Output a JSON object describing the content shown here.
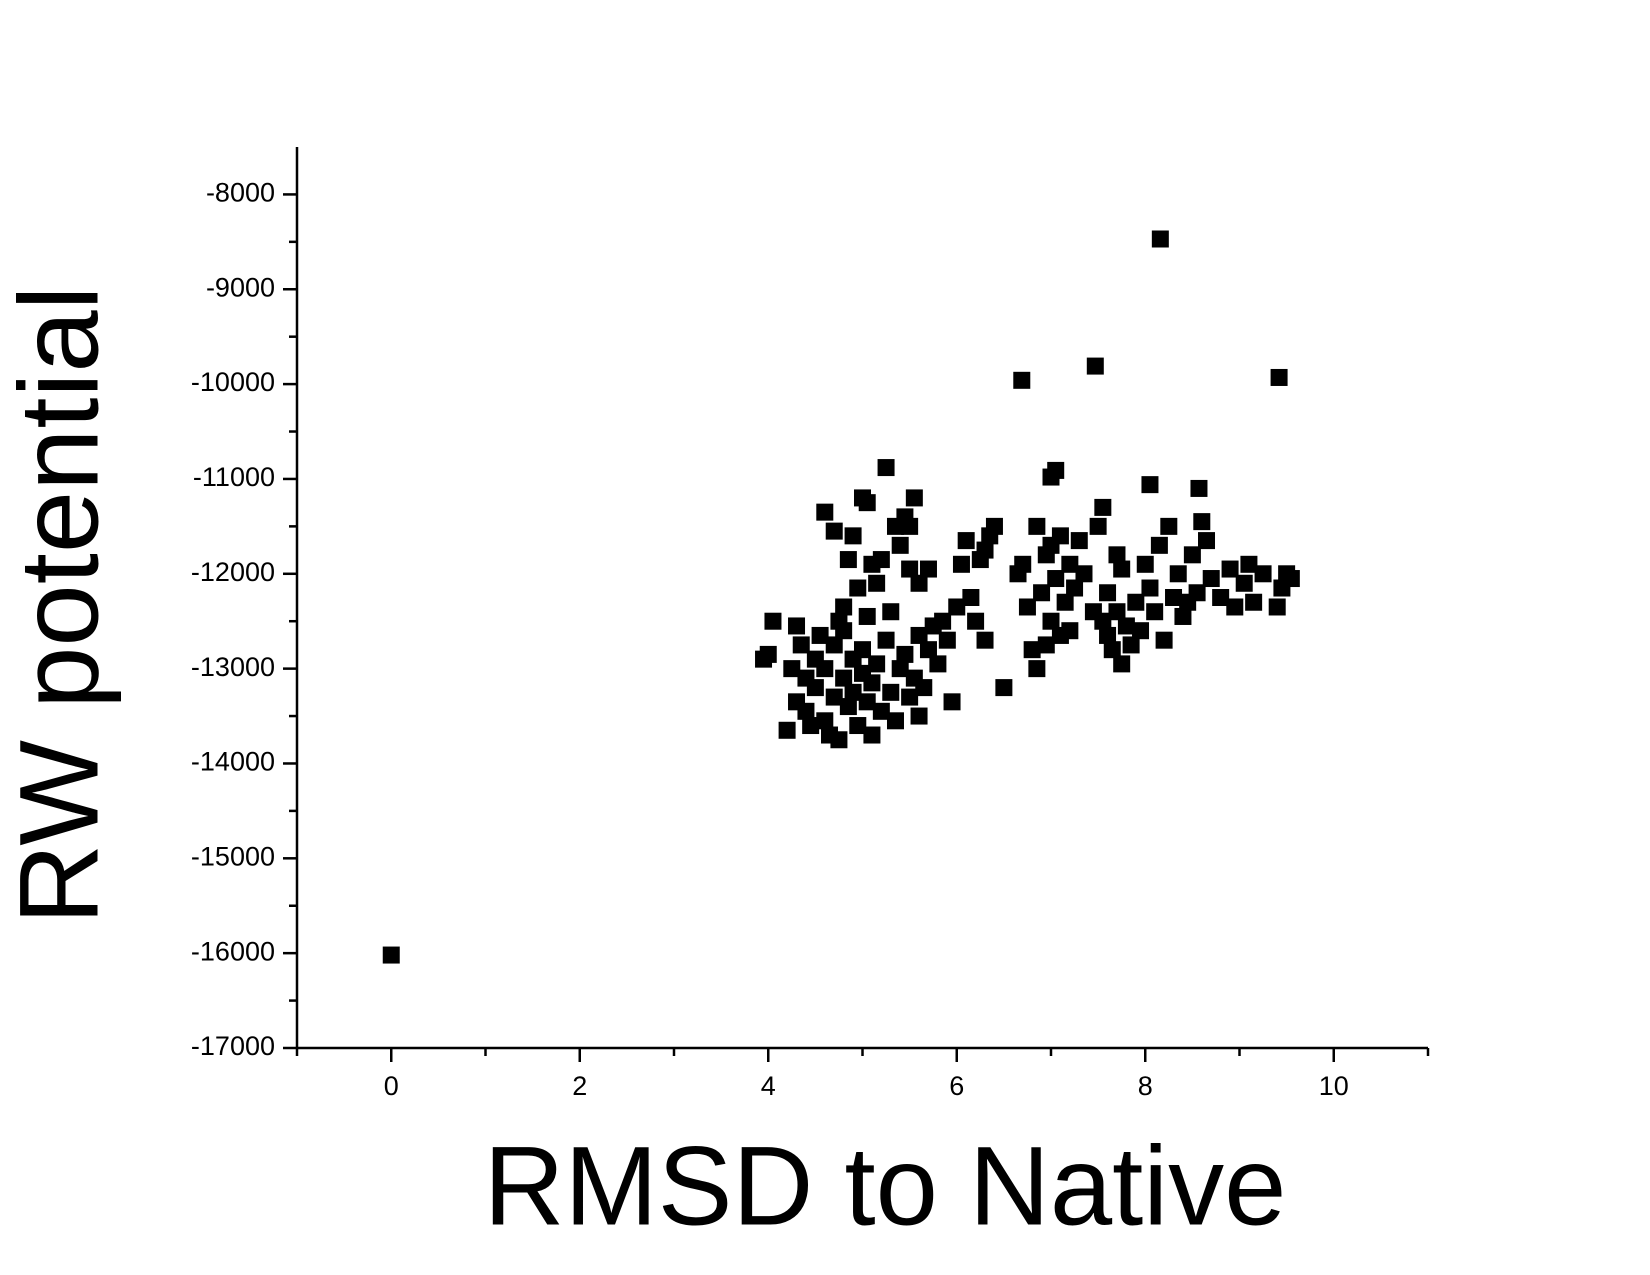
{
  "chart_data": {
    "type": "scatter",
    "x_label": "RMSD to Native",
    "y_label": "RW potential",
    "color": "#000000",
    "marker": "square",
    "xlim": [
      -1,
      11
    ],
    "ylim": [
      -17000,
      -7500
    ],
    "xticks": [
      0,
      2,
      4,
      6,
      8,
      10
    ],
    "yticks": [
      -8000,
      -9000,
      -10000,
      -11000,
      -12000,
      -13000,
      -14000,
      -15000,
      -16000,
      -17000
    ],
    "x_minor_ticks": [
      -1,
      1,
      3,
      5,
      7,
      9,
      11
    ],
    "y_minor_ticks": [
      -8500,
      -9500,
      -10500,
      -11500,
      -12500,
      -13500,
      -14500,
      -15500,
      -16500
    ],
    "x": [
      0,
      8.16,
      7.47,
      6.69,
      9.42,
      5.25,
      7.05,
      8.05,
      8.57,
      7.0,
      4.0,
      3.95,
      4.05,
      4.2,
      4.3,
      4.3,
      4.4,
      4.4,
      4.5,
      4.5,
      4.55,
      4.6,
      4.6,
      4.65,
      4.7,
      4.7,
      4.75,
      4.8,
      4.8,
      4.85,
      4.9,
      4.9,
      4.95,
      5.0,
      5.0,
      5.05,
      5.1,
      5.1,
      5.15,
      5.2,
      5.25,
      5.3,
      5.35,
      5.4,
      5.45,
      5.5,
      5.55,
      5.6,
      4.35,
      4.45,
      5.6,
      5.7,
      5.75,
      5.8,
      5.9,
      5.95,
      5.65,
      4.25,
      4.75,
      5.05,
      4.6,
      4.7,
      4.8,
      4.85,
      4.9,
      5.0,
      5.05,
      5.1,
      5.15,
      5.2,
      5.3,
      5.35,
      5.4,
      5.45,
      5.5,
      5.55,
      5.6,
      5.7,
      5.5,
      4.95,
      6.0,
      6.05,
      6.1,
      6.15,
      6.25,
      6.3,
      6.35,
      6.4,
      6.5,
      6.2,
      6.3,
      5.85,
      6.65,
      6.7,
      6.75,
      6.8,
      6.85,
      6.85,
      6.9,
      6.95,
      7.0,
      7.0,
      7.05,
      7.1,
      7.1,
      7.15,
      7.2,
      7.25,
      7.3,
      7.35,
      7.45,
      7.5,
      7.55,
      6.95,
      7.2,
      7.55,
      7.6,
      7.65,
      7.7,
      7.7,
      7.75,
      7.8,
      7.85,
      7.75,
      7.9,
      7.95,
      7.6,
      8.0,
      8.05,
      8.1,
      8.15,
      8.2,
      8.25,
      8.3,
      8.35,
      8.4,
      8.5,
      8.55,
      8.6,
      8.65,
      8.7,
      8.8,
      8.9,
      8.95,
      9.05,
      9.1,
      9.15,
      9.25,
      9.4,
      9.45,
      9.5,
      9.55,
      8.45
    ],
    "values": [
      -16020,
      -8470,
      -9810,
      -9960,
      -9930,
      -10880,
      -10910,
      -11060,
      -11100,
      -10980,
      -12850,
      -12900,
      -12500,
      -13650,
      -12550,
      -13350,
      -13100,
      -13450,
      -12900,
      -13200,
      -12650,
      -13000,
      -13550,
      -13700,
      -12750,
      -13300,
      -13750,
      -12600,
      -13100,
      -13400,
      -12900,
      -13250,
      -13600,
      -12800,
      -13050,
      -13350,
      -13150,
      -13700,
      -12950,
      -13450,
      -12700,
      -13250,
      -13550,
      -13000,
      -12850,
      -13300,
      -13100,
      -13500,
      -12750,
      -13600,
      -12650,
      -12800,
      -12550,
      -12950,
      -12700,
      -13350,
      -13200,
      -13000,
      -12500,
      -12450,
      -11350,
      -11550,
      -12350,
      -11850,
      -11600,
      -11200,
      -11250,
      -11900,
      -12100,
      -11850,
      -12400,
      -11500,
      -11700,
      -11400,
      -11500,
      -11200,
      -12100,
      -11950,
      -11950,
      -12150,
      -12350,
      -11900,
      -11650,
      -12250,
      -11850,
      -12700,
      -11600,
      -11500,
      -13200,
      -12500,
      -11750,
      -12500,
      -12000,
      -11900,
      -12350,
      -12800,
      -11500,
      -13000,
      -12200,
      -11800,
      -12500,
      -11700,
      -12050,
      -12650,
      -11600,
      -12300,
      -11900,
      -12150,
      -11650,
      -12000,
      -12400,
      -11500,
      -11300,
      -12750,
      -12600,
      -12500,
      -12650,
      -12800,
      -11800,
      -12400,
      -12950,
      -12550,
      -12750,
      -11950,
      -12300,
      -12600,
      -12200,
      -11900,
      -12150,
      -12400,
      -11700,
      -12700,
      -11500,
      -12250,
      -12000,
      -12450,
      -11800,
      -12200,
      -11450,
      -11650,
      -12050,
      -12250,
      -11950,
      -12350,
      -12100,
      -11900,
      -12300,
      -12000,
      -12350,
      -12150,
      -12000,
      -12050,
      -12300
    ]
  }
}
